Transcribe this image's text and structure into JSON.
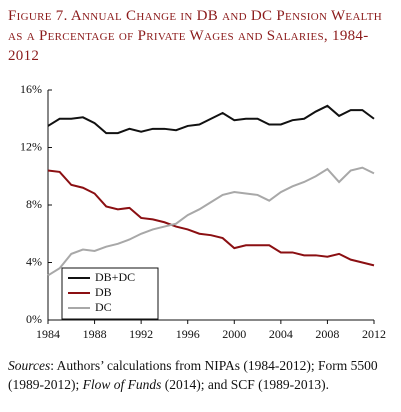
{
  "chart_data": {
    "type": "line",
    "title": "Figure 7. Annual Change in DB and DC Pension Wealth as a Percentage of Private Wages and Salaries, 1984-2012",
    "x": [
      1984,
      1985,
      1986,
      1987,
      1988,
      1989,
      1990,
      1991,
      1992,
      1993,
      1994,
      1995,
      1996,
      1997,
      1998,
      1999,
      2000,
      2001,
      2002,
      2003,
      2004,
      2005,
      2006,
      2007,
      2008,
      2009,
      2010,
      2011,
      2012
    ],
    "series": [
      {
        "name": "DB+DC",
        "color": "#111111",
        "values": [
          13.5,
          14.0,
          14.0,
          14.1,
          13.7,
          13.0,
          13.0,
          13.3,
          13.1,
          13.3,
          13.3,
          13.2,
          13.5,
          13.6,
          14.0,
          14.4,
          13.9,
          14.0,
          14.0,
          13.6,
          13.6,
          13.9,
          14.0,
          14.5,
          14.9,
          14.2,
          14.6,
          14.6,
          14.0
        ]
      },
      {
        "name": "DB",
        "color": "#8b0f12",
        "values": [
          10.4,
          10.3,
          9.4,
          9.2,
          8.8,
          7.9,
          7.7,
          7.8,
          7.1,
          7.0,
          6.8,
          6.5,
          6.3,
          6.0,
          5.9,
          5.7,
          5.0,
          5.2,
          5.2,
          5.2,
          4.7,
          4.7,
          4.5,
          4.5,
          4.4,
          4.6,
          4.2,
          4.0,
          3.8
        ]
      },
      {
        "name": "DC",
        "color": "#a8a8a8",
        "values": [
          3.1,
          3.6,
          4.6,
          4.9,
          4.8,
          5.1,
          5.3,
          5.6,
          6.0,
          6.3,
          6.5,
          6.7,
          7.3,
          7.7,
          8.2,
          8.7,
          8.9,
          8.8,
          8.7,
          8.3,
          8.9,
          9.3,
          9.6,
          10.0,
          10.5,
          9.6,
          10.4,
          10.6,
          10.2
        ]
      }
    ],
    "xlim": [
      1984,
      2012
    ],
    "xticks": [
      1984,
      1988,
      1992,
      1996,
      2000,
      2004,
      2008,
      2012
    ],
    "ylim": [
      0,
      16
    ],
    "yticks": [
      {
        "value": 0,
        "label": "0%"
      },
      {
        "value": 4,
        "label": "4%"
      },
      {
        "value": 8,
        "label": "8%"
      },
      {
        "value": 12,
        "label": "12%"
      },
      {
        "value": 16,
        "label": "16%"
      }
    ],
    "legend": "lower-left",
    "source": [
      "Sources",
      ": Authors’ calculations from NIPAs (1984-2012); Form 5500 (1989-2012); ",
      "Flow of Funds",
      " (2014); and SCF (1989-2013)."
    ]
  }
}
